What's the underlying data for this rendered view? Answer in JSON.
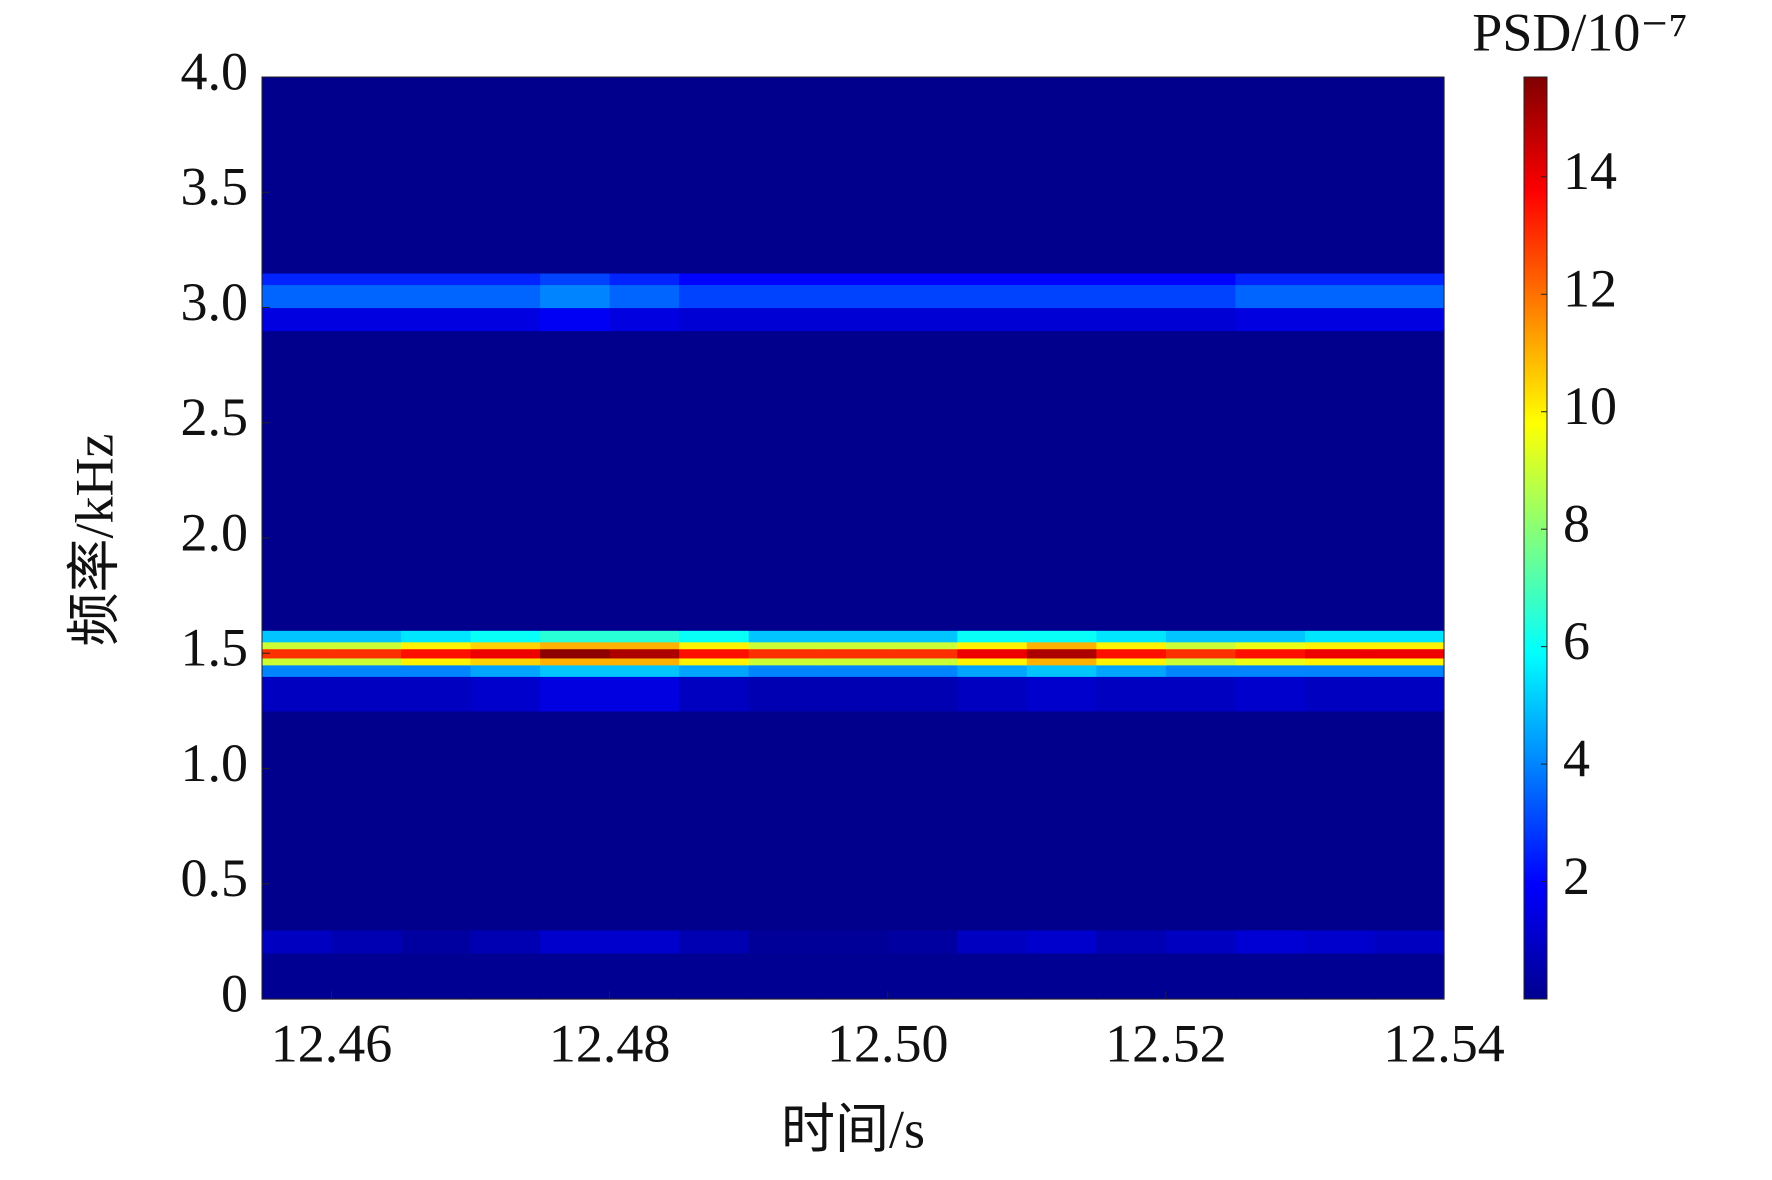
{
  "chart_data": {
    "type": "heatmap",
    "xlabel": "时间/s",
    "ylabel": "频率/kHz",
    "colorbar_label": "PSD/10⁻⁷",
    "colormap": "jet",
    "xlim": [
      12.455,
      12.54
    ],
    "ylim": [
      0,
      4.0
    ],
    "xticks": [
      12.46,
      12.48,
      {
        "value": 12.5,
        "label": "12.50"
      },
      12.52,
      12.54
    ],
    "yticks": [
      0,
      0.5,
      {
        "value": 1,
        "label": "1.0"
      },
      1.5,
      {
        "value": 2,
        "label": "2.0"
      },
      2.5,
      {
        "value": 3,
        "label": "3.0"
      },
      3.5,
      {
        "value": 4,
        "label": "4.0"
      }
    ],
    "clim": [
      0,
      15.7
    ],
    "cticks": [
      2,
      4,
      6,
      8,
      10,
      12,
      14
    ],
    "x_edges": [
      12.455,
      12.46,
      12.465,
      12.47,
      12.475,
      12.48,
      12.485,
      12.49,
      12.495,
      12.5,
      12.505,
      12.51,
      12.515,
      12.52,
      12.525,
      12.53,
      12.535,
      12.54
    ],
    "y_edges": [
      0,
      0.2,
      0.3,
      1.25,
      1.4,
      1.45,
      1.48,
      1.52,
      1.55,
      1.6,
      2.9,
      3.0,
      3.1,
      3.15,
      4.0
    ],
    "values": [
      [
        0.3,
        0.3,
        0.3,
        0.3,
        0.3,
        0.3,
        0.3,
        0.3,
        0.3,
        0.3,
        0.3,
        0.3,
        0.3,
        0.3,
        0.3,
        0.3,
        0.3
      ],
      [
        1,
        0.8,
        0.5,
        0.8,
        1.2,
        1.2,
        0.8,
        0.4,
        0.4,
        0.5,
        1,
        1.2,
        0.8,
        1,
        1.3,
        1.2,
        1
      ],
      [
        0.2,
        0.2,
        0.2,
        0.2,
        0.2,
        0.2,
        0.2,
        0.2,
        0.2,
        0.2,
        0.2,
        0.2,
        0.2,
        0.2,
        0.2,
        0.2,
        0.2
      ],
      [
        1,
        1,
        1,
        1.2,
        1.5,
        1.5,
        1,
        0.8,
        0.8,
        0.8,
        1,
        1.2,
        1,
        1,
        1.2,
        1,
        1
      ],
      [
        4,
        4,
        4,
        4.5,
        5,
        5,
        4.5,
        4,
        4,
        4,
        4.5,
        5,
        4.5,
        4,
        4,
        4,
        4
      ],
      [
        9,
        9,
        10,
        10.5,
        11,
        11,
        10,
        9,
        9,
        9,
        10,
        11,
        10,
        9,
        9.5,
        10,
        10
      ],
      [
        13,
        13,
        13.5,
        14,
        15.5,
        15,
        13.5,
        13,
        13,
        13,
        14,
        15,
        13.5,
        13,
        13.5,
        14,
        14
      ],
      [
        9,
        9,
        10,
        10.5,
        11,
        11,
        10,
        9,
        9,
        9,
        10,
        11,
        10,
        9,
        9.5,
        10,
        10
      ],
      [
        5,
        5,
        5.5,
        6,
        6.5,
        6.5,
        6,
        5,
        5,
        5,
        6,
        6,
        5.5,
        5,
        5,
        5.5,
        5.5
      ],
      [
        0.2,
        0.2,
        0.2,
        0.2,
        0.2,
        0.2,
        0.2,
        0.2,
        0.2,
        0.2,
        0.2,
        0.2,
        0.2,
        0.2,
        0.2,
        0.2,
        0.2
      ],
      [
        1.5,
        1.5,
        1.5,
        1.5,
        1.8,
        1.5,
        1.3,
        1.3,
        1.3,
        1.3,
        1.3,
        1.3,
        1.3,
        1.3,
        1.5,
        1.5,
        1.5
      ],
      [
        3.5,
        3.5,
        3.5,
        3.5,
        4,
        3.5,
        3,
        3,
        3,
        3,
        3,
        3,
        3,
        3,
        3.5,
        3.5,
        3.5
      ],
      [
        2.5,
        2.5,
        2.5,
        2.5,
        3,
        2.5,
        2,
        2,
        2,
        2,
        2,
        2,
        2,
        2,
        2.5,
        2.5,
        2.5
      ],
      [
        0.2,
        0.2,
        0.2,
        0.2,
        0.2,
        0.2,
        0.2,
        0.2,
        0.2,
        0.2,
        0.2,
        0.2,
        0.2,
        0.2,
        0.2,
        0.2,
        0.2
      ]
    ]
  }
}
